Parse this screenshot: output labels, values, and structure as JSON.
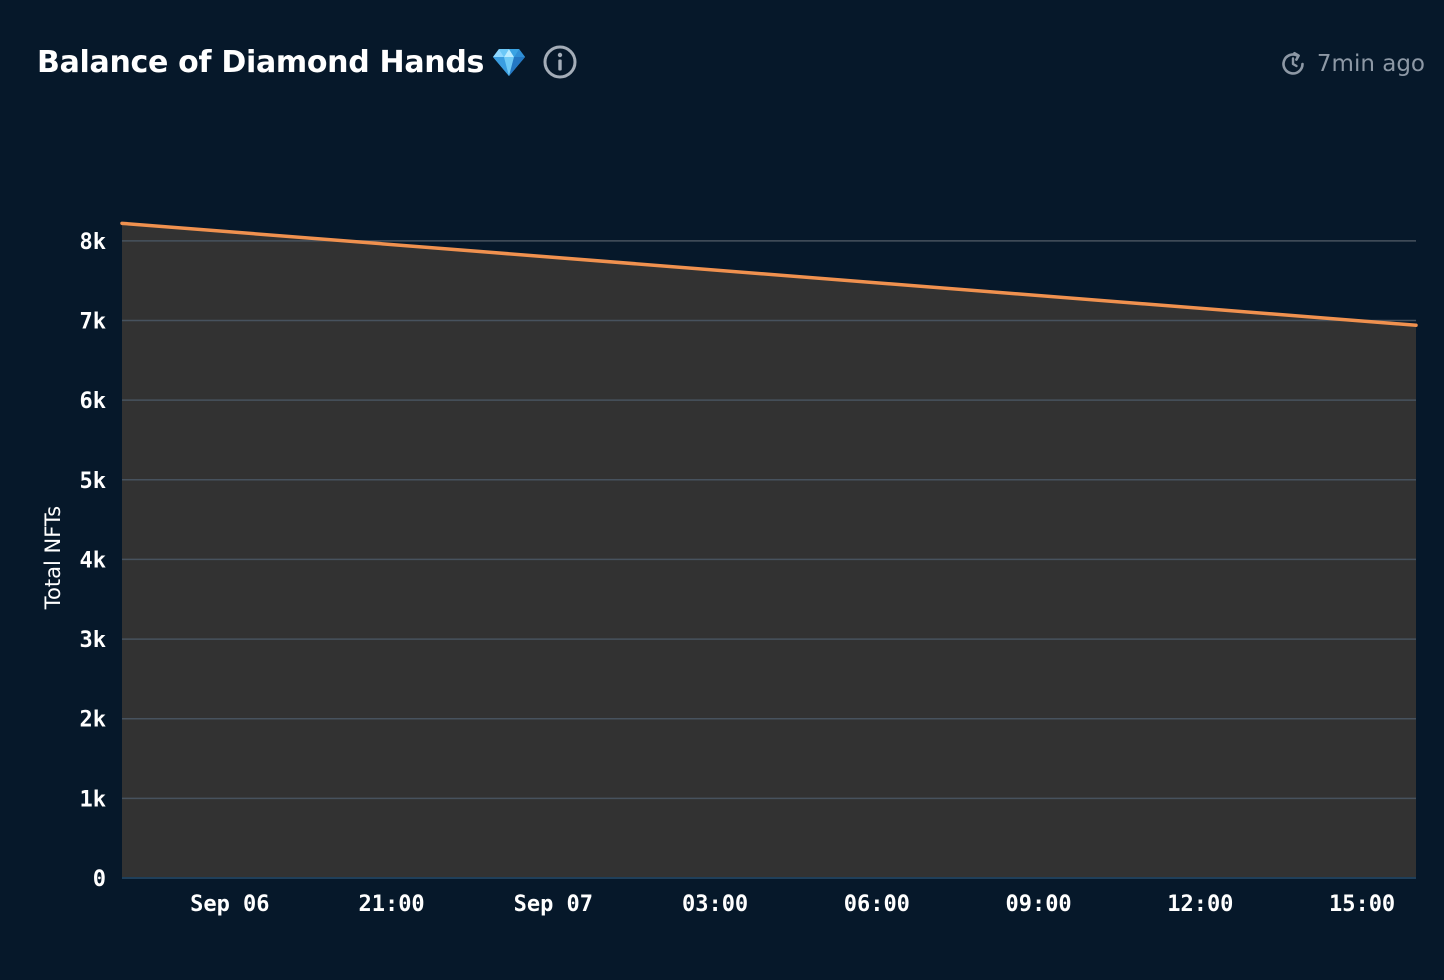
{
  "header": {
    "title": "Balance of Diamond Hands",
    "title_icon": "gem-icon",
    "info_icon": "info-icon",
    "updated_icon": "refresh-clock-icon",
    "updated_text": "7min ago"
  },
  "colors": {
    "background": "#06182a",
    "plot_fill": "#323232",
    "line": "#f0914f",
    "grid": "#47525e",
    "muted_text": "#8d98a5"
  },
  "chart_data": {
    "type": "area",
    "title": "Balance of Diamond Hands",
    "xlabel": "",
    "ylabel": "Total NFTs",
    "x_ticks": [
      "Sep 06",
      "21:00",
      "Sep 07",
      "03:00",
      "06:00",
      "09:00",
      "12:00",
      "15:00"
    ],
    "x_tick_hours": [
      0,
      3,
      6,
      9,
      12,
      15,
      18,
      21
    ],
    "xlim_hours": [
      -2,
      22
    ],
    "y_ticks": [
      0,
      1000,
      2000,
      3000,
      4000,
      5000,
      6000,
      7000,
      8000
    ],
    "y_tick_labels": [
      "0",
      "1k",
      "2k",
      "3k",
      "4k",
      "5k",
      "6k",
      "7k",
      "8k"
    ],
    "ylim": [
      0,
      8450
    ],
    "grid": true,
    "legend": "none",
    "series": [
      {
        "x_hours": [
          -2,
          22
        ],
        "values": [
          8220,
          6940
        ]
      }
    ]
  }
}
